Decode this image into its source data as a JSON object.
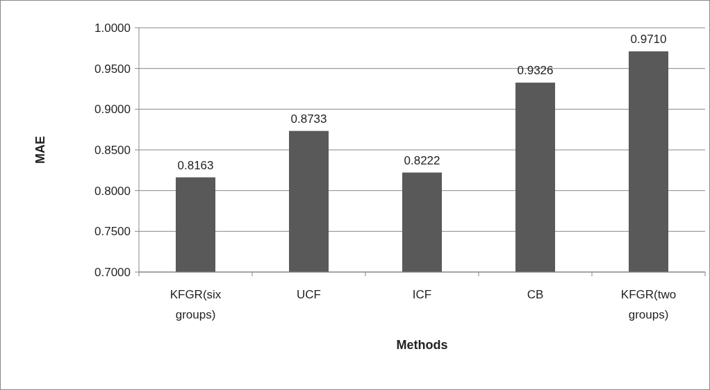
{
  "chart_data": {
    "type": "bar",
    "xlabel": "Methods",
    "ylabel": "MAE",
    "categories": [
      "KFGR(six groups)",
      "UCF",
      "ICF",
      "CB",
      "KFGR(two groups)"
    ],
    "values": [
      0.8163,
      0.8733,
      0.8222,
      0.9326,
      0.971
    ],
    "value_labels": [
      "0.8163",
      "0.8733",
      "0.8222",
      "0.9326",
      "0.9710"
    ],
    "color": "#595959",
    "ylim": [
      0.7,
      1.0
    ],
    "yticks": [
      {
        "value": 0.7,
        "label": "0.7000"
      },
      {
        "value": 0.75,
        "label": "0.7500"
      },
      {
        "value": 0.8,
        "label": "0.8000"
      },
      {
        "value": 0.85,
        "label": "0.8500"
      },
      {
        "value": 0.9,
        "label": "0.9000"
      },
      {
        "value": 0.95,
        "label": "0.9500"
      },
      {
        "value": 1.0,
        "label": "1.0000"
      }
    ],
    "grid": "y"
  }
}
